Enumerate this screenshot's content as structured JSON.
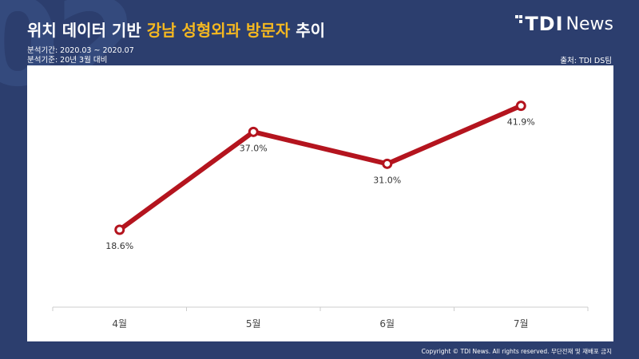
{
  "header": {
    "title_part1": "위치 데이터 기반 ",
    "title_highlight": "강남 성형외과 방문자",
    "title_part2": " 추이",
    "period": "분석기간: 2020.03 ~ 2020.07",
    "basis": "분석기준: 20년 3월 대비",
    "source": "출처: TDI DS팀"
  },
  "logo": {
    "bold": "TDI",
    "light": "News"
  },
  "footer": {
    "copyright": "Copyright © TDI News. All rights reserved. 무단전재 및 재배포 금지"
  },
  "chart_data": {
    "type": "line",
    "categories": [
      "4월",
      "5월",
      "6월",
      "7월"
    ],
    "series": [
      {
        "values": [
          18.6,
          37.0,
          31.0,
          41.9
        ],
        "labels": [
          "18.6%",
          "37.0%",
          "31.0%",
          "41.9%"
        ],
        "color": "#b4141e"
      }
    ],
    "ylim": [
      12,
      45
    ],
    "grid": false,
    "legend": false
  },
  "colors": {
    "background": "#2c3e6e",
    "highlight": "#f5b820",
    "line": "#b4141e",
    "axis": "#cccccc"
  }
}
